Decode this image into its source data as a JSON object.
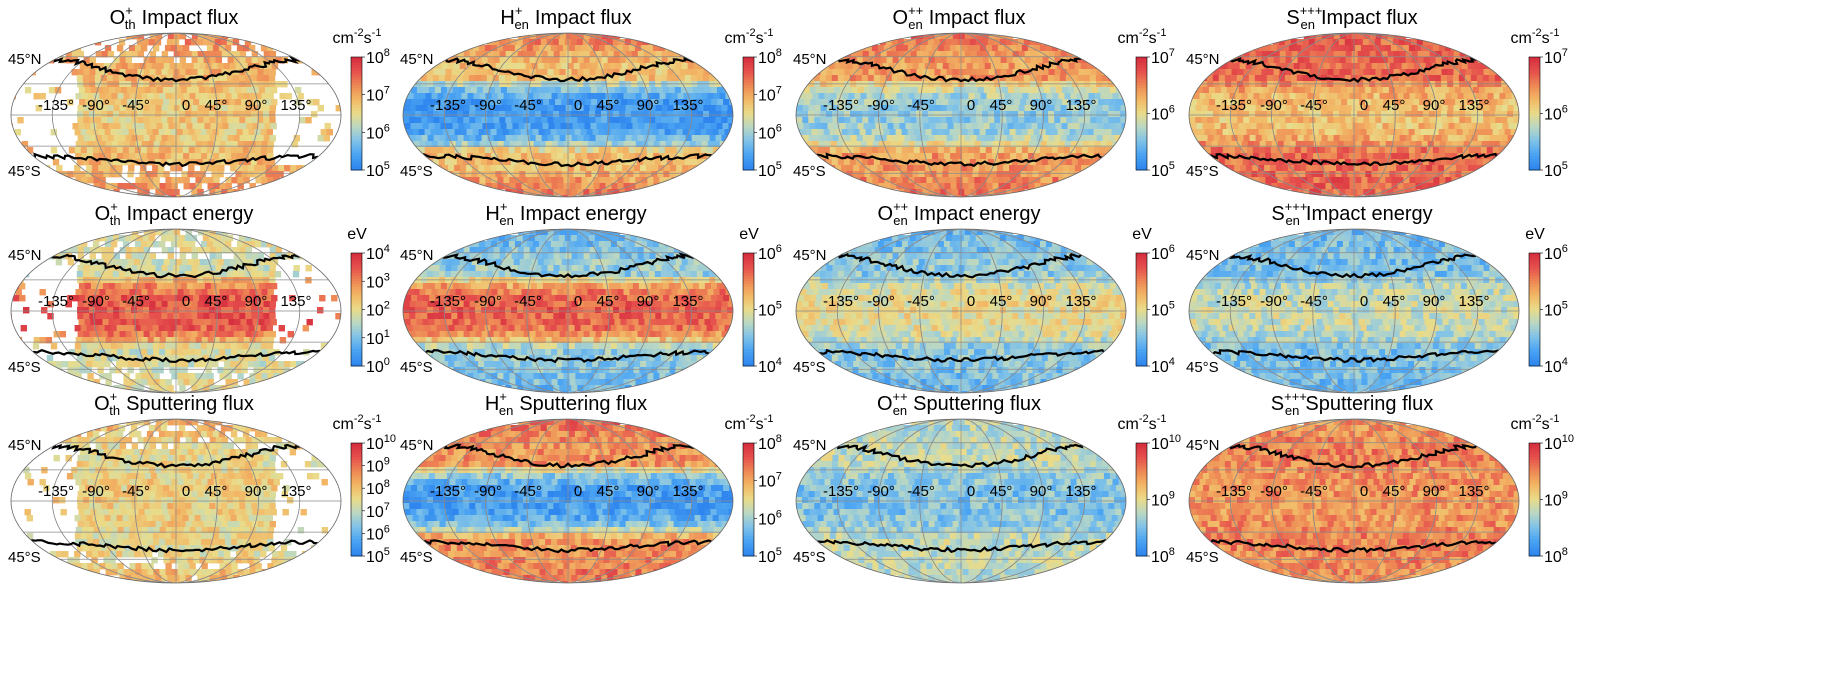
{
  "colors": {
    "colormap": [
      "#2f86ee",
      "#4aa3f2",
      "#7fc2e8",
      "#b9d7c4",
      "#e9dc8a",
      "#f2b866",
      "#ee8a55",
      "#e6524d",
      "#d62f3f"
    ],
    "background": "#ffffff",
    "outline": "#000000",
    "grid": "#8a8a8a"
  },
  "chart_data": [
    {
      "type": "heatmap",
      "projection": "mollweide",
      "title": {
        "species": "O",
        "charge": "+",
        "sub": "th",
        "quantity": "Impact flux"
      },
      "unit": {
        "base": "cm",
        "exp1": "-2",
        "mid": "s",
        "exp2": "-1"
      },
      "colorbar": {
        "scale": "log",
        "ticks": [
          {
            "base": "10",
            "exp": "8"
          },
          {
            "base": "10",
            "exp": "7"
          },
          {
            "base": "10",
            "exp": "6"
          },
          {
            "base": "10",
            "exp": "5"
          }
        ]
      },
      "lon_labels": [
        "-135°",
        "-90°",
        "-45°",
        "0",
        "45°",
        "90°",
        "135°"
      ],
      "lat_labels": [
        "45°N",
        "45°S"
      ],
      "level": {
        "equator": 0.55,
        "midlat": 0.62,
        "polar": 0.75
      },
      "coverage": "partial",
      "boundary": {
        "north": "45°N band",
        "south": "45°S band"
      }
    },
    {
      "type": "heatmap",
      "projection": "mollweide",
      "title": {
        "species": "H",
        "charge": "+",
        "sub": "en",
        "quantity": "Impact flux"
      },
      "unit": {
        "base": "cm",
        "exp1": "-2",
        "mid": "s",
        "exp2": "-1"
      },
      "colorbar": {
        "scale": "log",
        "ticks": [
          {
            "base": "10",
            "exp": "8"
          },
          {
            "base": "10",
            "exp": "7"
          },
          {
            "base": "10",
            "exp": "6"
          },
          {
            "base": "10",
            "exp": "5"
          }
        ]
      },
      "lon_labels": [
        "-135°",
        "-90°",
        "-45°",
        "0",
        "45°",
        "90°",
        "135°"
      ],
      "lat_labels": [
        "45°N",
        "45°S"
      ],
      "level": {
        "equator": 0.08,
        "midlat": 0.6,
        "polar": 0.8
      },
      "coverage": "full",
      "boundary": {
        "north": "45°N band",
        "south": "45°S band"
      }
    },
    {
      "type": "heatmap",
      "projection": "mollweide",
      "title": {
        "species": "O",
        "charge": "++",
        "sub": "en",
        "quantity": "Impact flux"
      },
      "unit": {
        "base": "cm",
        "exp1": "-2",
        "mid": "s",
        "exp2": "-1"
      },
      "colorbar": {
        "scale": "log",
        "ticks": [
          {
            "base": "10",
            "exp": "7"
          },
          {
            "base": "10",
            "exp": "6"
          },
          {
            "base": "10",
            "exp": "5"
          }
        ]
      },
      "lon_labels": [
        "-135°",
        "-90°",
        "-45°",
        "0",
        "45°",
        "90°",
        "135°"
      ],
      "lat_labels": [
        "45°N",
        "45°S"
      ],
      "level": {
        "equator": 0.3,
        "midlat": 0.7,
        "polar": 0.8
      },
      "coverage": "full",
      "boundary": {
        "north": "45°N band",
        "south": "45°S band"
      }
    },
    {
      "type": "heatmap",
      "projection": "mollweide",
      "title": {
        "species": "S",
        "charge": "+++",
        "sub": "en",
        "quantity": "Impact flux"
      },
      "unit": {
        "base": "cm",
        "exp1": "-2",
        "mid": "s",
        "exp2": "-1"
      },
      "colorbar": {
        "scale": "log",
        "ticks": [
          {
            "base": "10",
            "exp": "7"
          },
          {
            "base": "10",
            "exp": "6"
          },
          {
            "base": "10",
            "exp": "5"
          }
        ]
      },
      "lon_labels": [
        "-135°",
        "-90°",
        "-45°",
        "0",
        "45°",
        "90°",
        "135°"
      ],
      "lat_labels": [
        "45°N",
        "45°S"
      ],
      "level": {
        "equator": 0.6,
        "midlat": 0.82,
        "polar": 0.85
      },
      "coverage": "full",
      "boundary": {
        "north": "45°N band",
        "south": "45°S band"
      }
    },
    {
      "type": "heatmap",
      "projection": "mollweide",
      "title": {
        "species": "O",
        "charge": "+",
        "sub": "th",
        "quantity": "Impact energy"
      },
      "unit": {
        "base": "eV",
        "exp1": "",
        "mid": "",
        "exp2": ""
      },
      "colorbar": {
        "scale": "log",
        "ticks": [
          {
            "base": "10",
            "exp": "4"
          },
          {
            "base": "10",
            "exp": "3"
          },
          {
            "base": "10",
            "exp": "2"
          },
          {
            "base": "10",
            "exp": "1"
          },
          {
            "base": "10",
            "exp": "0"
          }
        ]
      },
      "lon_labels": [
        "-135°",
        "-90°",
        "-45°",
        "0",
        "45°",
        "90°",
        "135°"
      ],
      "lat_labels": [
        "45°N",
        "45°S"
      ],
      "level": {
        "equator": 0.88,
        "midlat": 0.45,
        "polar": 0.5
      },
      "coverage": "partial",
      "boundary": {
        "north": "45°N band",
        "south": "45°S band"
      }
    },
    {
      "type": "heatmap",
      "projection": "mollweide",
      "title": {
        "species": "H",
        "charge": "+",
        "sub": "en",
        "quantity": "Impact energy"
      },
      "unit": {
        "base": "eV",
        "exp1": "",
        "mid": "",
        "exp2": ""
      },
      "colorbar": {
        "scale": "log",
        "ticks": [
          {
            "base": "10",
            "exp": "6"
          },
          {
            "base": "10",
            "exp": "5"
          },
          {
            "base": "10",
            "exp": "4"
          }
        ]
      },
      "lon_labels": [
        "-135°",
        "-90°",
        "-45°",
        "0",
        "45°",
        "90°",
        "135°"
      ],
      "lat_labels": [
        "45°N",
        "45°S"
      ],
      "level": {
        "equator": 0.85,
        "midlat": 0.3,
        "polar": 0.18
      },
      "coverage": "full",
      "boundary": {
        "north": "45°N band",
        "south": "45°S band"
      }
    },
    {
      "type": "heatmap",
      "projection": "mollweide",
      "title": {
        "species": "O",
        "charge": "++",
        "sub": "en",
        "quantity": "Impact energy"
      },
      "unit": {
        "base": "eV",
        "exp1": "",
        "mid": "",
        "exp2": ""
      },
      "colorbar": {
        "scale": "log",
        "ticks": [
          {
            "base": "10",
            "exp": "6"
          },
          {
            "base": "10",
            "exp": "5"
          },
          {
            "base": "10",
            "exp": "4"
          }
        ]
      },
      "lon_labels": [
        "-135°",
        "-90°",
        "-45°",
        "0",
        "45°",
        "90°",
        "135°"
      ],
      "lat_labels": [
        "45°N",
        "45°S"
      ],
      "level": {
        "equator": 0.5,
        "midlat": 0.28,
        "polar": 0.18
      },
      "coverage": "full",
      "boundary": {
        "north": "45°N band",
        "south": "45°S band"
      }
    },
    {
      "type": "heatmap",
      "projection": "mollweide",
      "title": {
        "species": "S",
        "charge": "+++",
        "sub": "en",
        "quantity": "Impact energy"
      },
      "unit": {
        "base": "eV",
        "exp1": "",
        "mid": "",
        "exp2": ""
      },
      "colorbar": {
        "scale": "log",
        "ticks": [
          {
            "base": "10",
            "exp": "6"
          },
          {
            "base": "10",
            "exp": "5"
          },
          {
            "base": "10",
            "exp": "4"
          }
        ]
      },
      "lon_labels": [
        "-135°",
        "-90°",
        "-45°",
        "0",
        "45°",
        "90°",
        "135°"
      ],
      "lat_labels": [
        "45°N",
        "45°S"
      ],
      "level": {
        "equator": 0.42,
        "midlat": 0.25,
        "polar": 0.2
      },
      "coverage": "full",
      "boundary": {
        "north": "45°N band",
        "south": "45°S band"
      }
    },
    {
      "type": "heatmap",
      "projection": "mollweide",
      "title": {
        "species": "O",
        "charge": "+",
        "sub": "th",
        "quantity": "Sputtering flux"
      },
      "unit": {
        "base": "cm",
        "exp1": "-2",
        "mid": "s",
        "exp2": "-1"
      },
      "colorbar": {
        "scale": "log",
        "ticks": [
          {
            "base": "10",
            "exp": "10"
          },
          {
            "base": "10",
            "exp": "9"
          },
          {
            "base": "10",
            "exp": "8"
          },
          {
            "base": "10",
            "exp": "7"
          },
          {
            "base": "10",
            "exp": "6"
          },
          {
            "base": "10",
            "exp": "5"
          }
        ]
      },
      "lon_labels": [
        "-135°",
        "-90°",
        "-45°",
        "0",
        "45°",
        "90°",
        "135°"
      ],
      "lat_labels": [
        "45°N",
        "45°S"
      ],
      "level": {
        "equator": 0.55,
        "midlat": 0.5,
        "polar": 0.65
      },
      "coverage": "partial",
      "boundary": {
        "north": "45°N band",
        "south": "45°S band"
      }
    },
    {
      "type": "heatmap",
      "projection": "mollweide",
      "title": {
        "species": "H",
        "charge": "+",
        "sub": "en",
        "quantity": "Sputtering flux"
      },
      "unit": {
        "base": "cm",
        "exp1": "-2",
        "mid": "s",
        "exp2": "-1"
      },
      "colorbar": {
        "scale": "log",
        "ticks": [
          {
            "base": "10",
            "exp": "8"
          },
          {
            "base": "10",
            "exp": "7"
          },
          {
            "base": "10",
            "exp": "6"
          },
          {
            "base": "10",
            "exp": "5"
          }
        ]
      },
      "lon_labels": [
        "-135°",
        "-90°",
        "-45°",
        "0",
        "45°",
        "90°",
        "135°"
      ],
      "lat_labels": [
        "45°N",
        "45°S"
      ],
      "level": {
        "equator": 0.1,
        "midlat": 0.72,
        "polar": 0.82
      },
      "coverage": "full",
      "boundary": {
        "north": "45°N band",
        "south": "45°S band"
      }
    },
    {
      "type": "heatmap",
      "projection": "mollweide",
      "title": {
        "species": "O",
        "charge": "++",
        "sub": "en",
        "quantity": "Sputtering flux"
      },
      "unit": {
        "base": "cm",
        "exp1": "-2",
        "mid": "s",
        "exp2": "-1"
      },
      "colorbar": {
        "scale": "log",
        "ticks": [
          {
            "base": "10",
            "exp": "10"
          },
          {
            "base": "10",
            "exp": "9"
          },
          {
            "base": "10",
            "exp": "8"
          }
        ]
      },
      "lon_labels": [
        "-135°",
        "-90°",
        "-45°",
        "0",
        "45°",
        "90°",
        "135°"
      ],
      "lat_labels": [
        "45°N",
        "45°S"
      ],
      "level": {
        "equator": 0.25,
        "midlat": 0.4,
        "polar": 0.38
      },
      "coverage": "full",
      "boundary": {
        "north": "45°N band",
        "south": "45°S band"
      }
    },
    {
      "type": "heatmap",
      "projection": "mollweide",
      "title": {
        "species": "S",
        "charge": "+++",
        "sub": "en",
        "quantity": "Sputtering flux"
      },
      "unit": {
        "base": "cm",
        "exp1": "-2",
        "mid": "s",
        "exp2": "-1"
      },
      "colorbar": {
        "scale": "log",
        "ticks": [
          {
            "base": "10",
            "exp": "10"
          },
          {
            "base": "10",
            "exp": "9"
          },
          {
            "base": "10",
            "exp": "8"
          }
        ]
      },
      "lon_labels": [
        "-135°",
        "-90°",
        "-45°",
        "0",
        "45°",
        "90°",
        "135°"
      ],
      "lat_labels": [
        "45°N",
        "45°S"
      ],
      "level": {
        "equator": 0.72,
        "midlat": 0.76,
        "polar": 0.72
      },
      "coverage": "full",
      "boundary": {
        "north": "45°N band",
        "south": "45°S band"
      }
    }
  ]
}
